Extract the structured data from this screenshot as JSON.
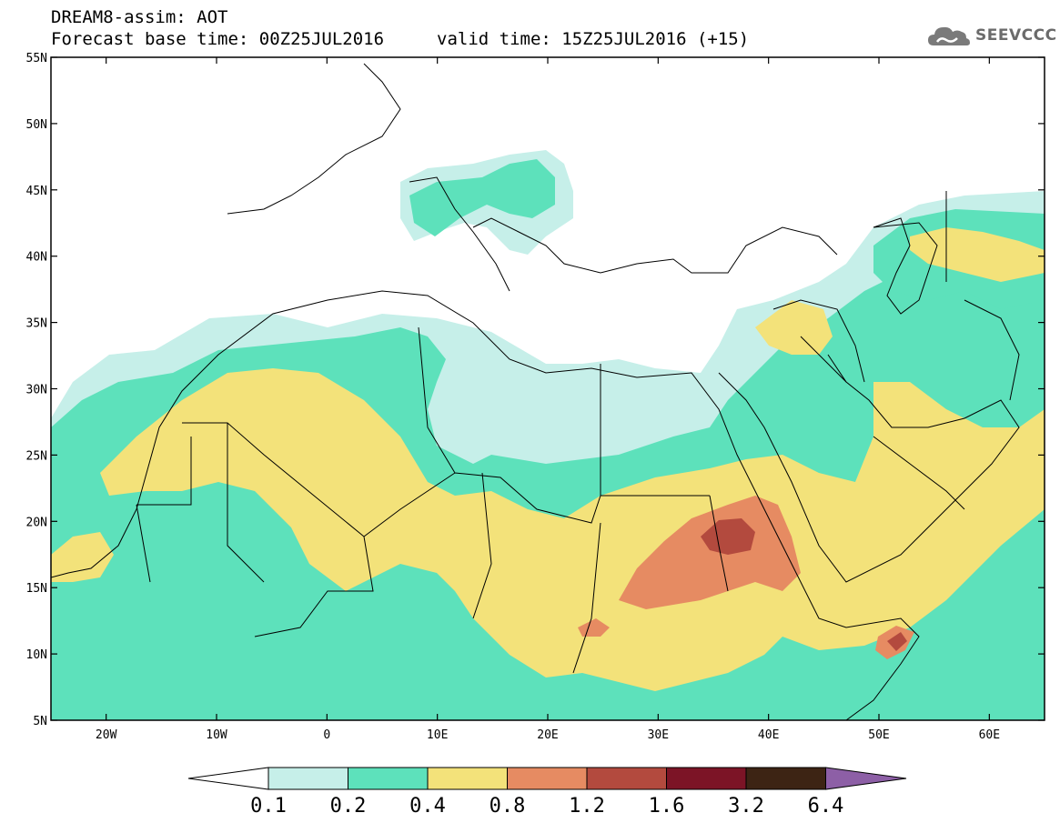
{
  "header": {
    "line1": "DREAM8-assim: AOT",
    "line2": "Forecast base time: 00Z25JUL2016",
    "line3": "valid time: 15Z25JUL2016 (+15)",
    "logo_text": "SEEVCCC"
  },
  "map": {
    "lon_min": -25,
    "lon_max": 65,
    "lat_min": 5,
    "lat_max": 55,
    "lat_ticks": [
      {
        "value": 55,
        "label": "55N"
      },
      {
        "value": 50,
        "label": "50N"
      },
      {
        "value": 45,
        "label": "45N"
      },
      {
        "value": 40,
        "label": "40N"
      },
      {
        "value": 35,
        "label": "35N"
      },
      {
        "value": 30,
        "label": "30N"
      },
      {
        "value": 25,
        "label": "25N"
      },
      {
        "value": 20,
        "label": "20N"
      },
      {
        "value": 15,
        "label": "15N"
      },
      {
        "value": 10,
        "label": "10N"
      },
      {
        "value": 5,
        "label": "5N"
      }
    ],
    "lon_ticks": [
      {
        "value": -20,
        "label": "20W"
      },
      {
        "value": -10,
        "label": "10W"
      },
      {
        "value": 0,
        "label": "0"
      },
      {
        "value": 10,
        "label": "10E"
      },
      {
        "value": 20,
        "label": "20E"
      },
      {
        "value": 30,
        "label": "30E"
      },
      {
        "value": 40,
        "label": "40E"
      },
      {
        "value": 50,
        "label": "50E"
      },
      {
        "value": 60,
        "label": "60E"
      }
    ]
  },
  "colorbar": {
    "labels": [
      "0.1",
      "0.2",
      "0.4",
      "0.8",
      "1.2",
      "1.6",
      "3.2",
      "6.4"
    ],
    "colors": [
      "#ffffff",
      "#c6efe9",
      "#5de1bb",
      "#f3e27a",
      "#e68b62",
      "#b34a3e",
      "#7c1426",
      "#3d2414",
      "#8d5fa6"
    ]
  }
}
